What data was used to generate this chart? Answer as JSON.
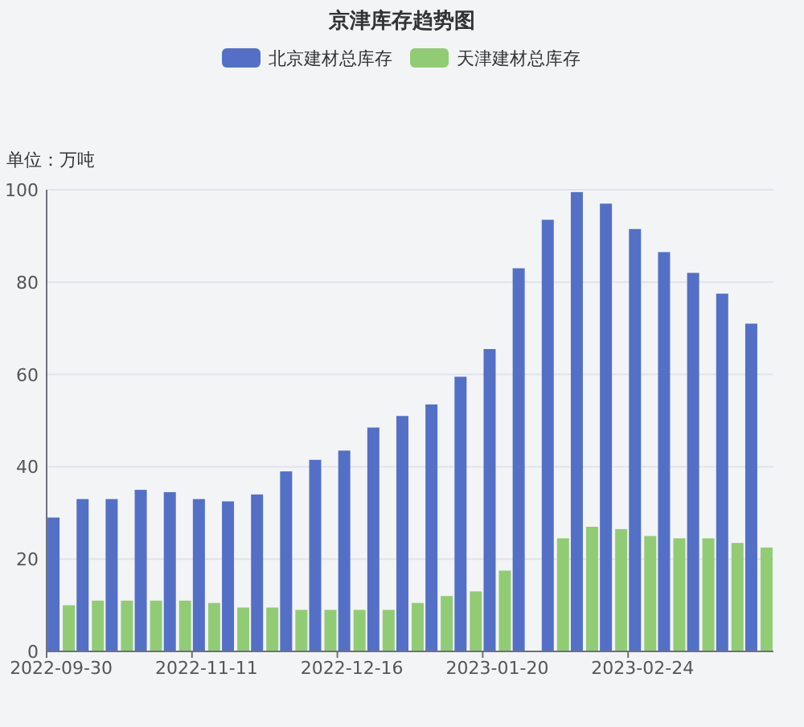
{
  "chart_data": {
    "type": "bar",
    "title": "京津库存趋势图",
    "ylabel": "单位：万吨",
    "categories": [
      "2022-09-30",
      null,
      null,
      null,
      null,
      "2022-11-11",
      null,
      null,
      null,
      null,
      "2022-12-16",
      null,
      null,
      null,
      null,
      "2023-01-20",
      null,
      null,
      null,
      null,
      "2023-02-24",
      null,
      null,
      null,
      null
    ],
    "series": [
      {
        "name": "北京建材总库存",
        "color": "#5470c6",
        "values": [
          29,
          33,
          33,
          35,
          34.5,
          33,
          32.5,
          34,
          39,
          41.5,
          43.5,
          48.5,
          51,
          53.5,
          59.5,
          65.5,
          83,
          93.5,
          99.5,
          97,
          91.5,
          86.5,
          82,
          77.5,
          71
        ]
      },
      {
        "name": "天津建材总库存",
        "color": "#91cc75",
        "values": [
          10,
          11,
          11,
          11,
          11,
          10.5,
          9.5,
          9.5,
          9,
          9,
          9,
          9,
          10.5,
          12,
          13,
          17.5,
          null,
          24.5,
          27,
          26.5,
          25,
          24.5,
          24.5,
          23.5,
          22.5
        ]
      }
    ],
    "ylim": [
      0,
      100
    ],
    "yticks": [
      0,
      20,
      40,
      60,
      80,
      100
    ],
    "grid": "y",
    "legend": "top"
  }
}
